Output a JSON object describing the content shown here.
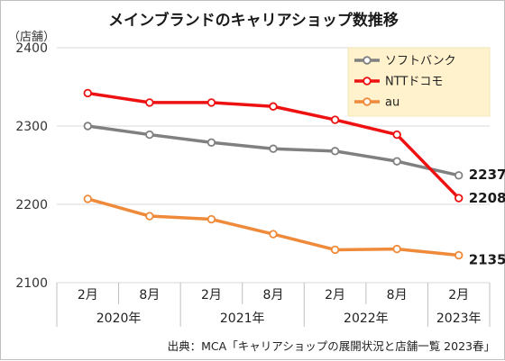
{
  "chart_data": {
    "type": "line",
    "title": "メインブランドのキャリアショップ数推移",
    "ylabel": "（店舗）",
    "ylim": [
      2100,
      2400
    ],
    "yticks": [
      2100,
      2200,
      2300,
      2400
    ],
    "grid": true,
    "legend_position": "top-right",
    "categories": [
      "2月",
      "8月",
      "2月",
      "8月",
      "2月",
      "8月",
      "2月"
    ],
    "year_groups": [
      {
        "label": "2020年",
        "span": 2
      },
      {
        "label": "2021年",
        "span": 2
      },
      {
        "label": "2022年",
        "span": 2
      },
      {
        "label": "2023年",
        "span": 1
      }
    ],
    "series": [
      {
        "name": "ソフトバンク",
        "color": "#808080",
        "values": [
          2300,
          2289,
          2279,
          2271,
          2268,
          2255,
          2237
        ],
        "end_label": "2237"
      },
      {
        "name": "NTTドコモ",
        "color": "#ee1111",
        "values": [
          2342,
          2330,
          2330,
          2325,
          2308,
          2289,
          2208
        ],
        "end_label": "2208"
      },
      {
        "name": "au",
        "color": "#ef8a3a",
        "values": [
          2207,
          2185,
          2181,
          2162,
          2142,
          2143,
          2135
        ],
        "end_label": "2135"
      }
    ],
    "source": "出典：MCA「キャリアショップの展開状況と店舗一覧 2023春」"
  }
}
